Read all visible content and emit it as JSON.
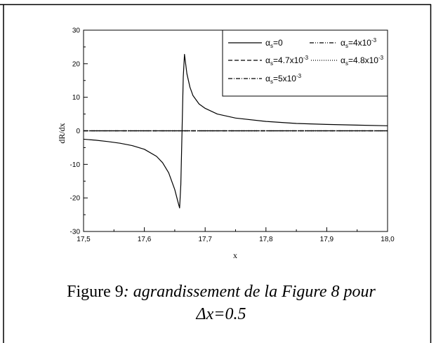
{
  "chart_data": {
    "type": "line",
    "xlabel": "x",
    "ylabel": "dR/dx",
    "xlim": [
      17.5,
      18.0
    ],
    "ylim": [
      -30,
      30
    ],
    "x_ticks": [
      17.5,
      17.6,
      17.7,
      17.8,
      17.9,
      18.0
    ],
    "x_tick_labels": [
      "17,5",
      "17,6",
      "17,7",
      "17,8",
      "17,9",
      "18,0"
    ],
    "y_ticks": [
      -30,
      -20,
      -10,
      0,
      10,
      20,
      30
    ],
    "y_tick_labels": [
      "-30",
      "-20",
      "-10",
      "0",
      "10",
      "20",
      "30"
    ],
    "grid": false,
    "legend_position": "top-right",
    "series": [
      {
        "name": "αs=0",
        "style": "solid",
        "x": [
          17.5,
          17.52,
          17.54,
          17.56,
          17.58,
          17.6,
          17.62,
          17.63,
          17.64,
          17.65,
          17.655,
          17.658,
          17.66,
          17.662,
          17.664,
          17.666,
          17.67,
          17.675,
          17.68,
          17.69,
          17.7,
          17.72,
          17.75,
          17.8,
          17.85,
          17.9,
          17.95,
          18.0
        ],
        "y": [
          -2.5,
          -2.8,
          -3.2,
          -3.7,
          -4.4,
          -5.5,
          -7.6,
          -9.5,
          -12.5,
          -17.5,
          -21.0,
          -23.0,
          -16.0,
          0.0,
          16.0,
          22.8,
          17.0,
          13.0,
          10.5,
          8.0,
          6.7,
          5.0,
          3.8,
          2.8,
          2.2,
          1.9,
          1.7,
          1.5
        ]
      },
      {
        "name": "αs=4x10-3",
        "style": "dash-dot-dot",
        "x": [
          17.5,
          18.0
        ],
        "y": [
          0,
          0
        ]
      },
      {
        "name": "αs=4.7x10-3",
        "style": "dash",
        "x": [
          17.5,
          18.0
        ],
        "y": [
          0,
          0
        ]
      },
      {
        "name": "αs=4.8x10-3",
        "style": "dot",
        "x": [
          17.5,
          18.0
        ],
        "y": [
          0,
          0
        ]
      },
      {
        "name": "αs=5x10-3",
        "style": "dash-dot",
        "x": [
          17.5,
          18.0
        ],
        "y": [
          0,
          0
        ]
      }
    ],
    "legend": [
      {
        "base": "α",
        "sub": "s",
        "text": "=0",
        "sup": ""
      },
      {
        "base": "α",
        "sub": "s",
        "text": "=4x10",
        "sup": "-3"
      },
      {
        "base": "α",
        "sub": "s",
        "text": "=4.7x10",
        "sup": "-3"
      },
      {
        "base": "α",
        "sub": "s",
        "text": "=4.8x10",
        "sup": "-3"
      },
      {
        "base": "α",
        "sub": "s",
        "text": "=5x10",
        "sup": "-3"
      }
    ]
  },
  "caption": {
    "prefix": "Figure 9",
    "text": ": agrandissement de la Figure 8  pour",
    "line2": "Δx=0.5"
  }
}
